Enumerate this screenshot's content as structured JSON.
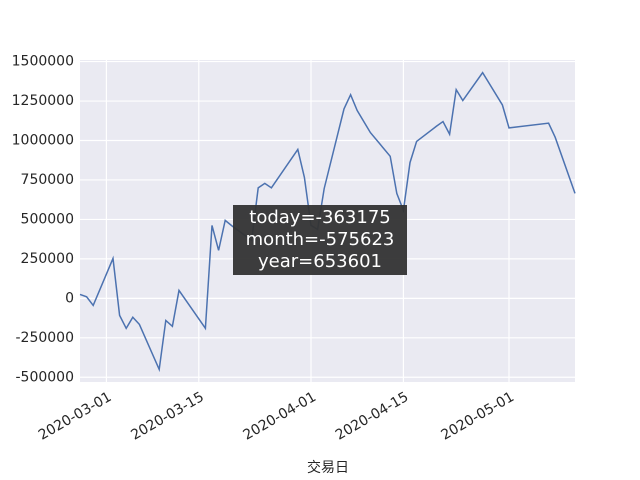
{
  "chart_data": {
    "type": "line",
    "xlabel": "交易日",
    "x": [
      "2020-02-26",
      "2020-02-27",
      "2020-02-28",
      "2020-03-02",
      "2020-03-03",
      "2020-03-04",
      "2020-03-05",
      "2020-03-06",
      "2020-03-09",
      "2020-03-10",
      "2020-03-11",
      "2020-03-12",
      "2020-03-16",
      "2020-03-17",
      "2020-03-18",
      "2020-03-19",
      "2020-03-20",
      "2020-03-23",
      "2020-03-24",
      "2020-03-25",
      "2020-03-26",
      "2020-03-30",
      "2020-03-31",
      "2020-04-01",
      "2020-04-02",
      "2020-04-03",
      "2020-04-06",
      "2020-04-07",
      "2020-04-08",
      "2020-04-10",
      "2020-04-13",
      "2020-04-14",
      "2020-04-15",
      "2020-04-16",
      "2020-04-17",
      "2020-04-20",
      "2020-04-21",
      "2020-04-22",
      "2020-04-23",
      "2020-04-24",
      "2020-04-27",
      "2020-04-30",
      "2020-05-01",
      "2020-05-07",
      "2020-05-08",
      "2020-05-11"
    ],
    "series": [
      {
        "color": "#4c72b0",
        "values": [
          25000,
          10000,
          -45000,
          253000,
          -108000,
          -190000,
          -120000,
          -165000,
          -450000,
          -140000,
          -177000,
          50000,
          -190000,
          462000,
          304000,
          494000,
          460000,
          367000,
          700000,
          728000,
          700000,
          943000,
          766000,
          462000,
          437000,
          696000,
          1200000,
          1290000,
          1190000,
          1050000,
          900000,
          665000,
          557000,
          860000,
          994000,
          1090000,
          1120000,
          1040000,
          1322000,
          1253000,
          1430000,
          1225000,
          1080000,
          1110000,
          1020000,
          665000
        ]
      }
    ],
    "xlim": [
      "2020-02-26",
      "2020-05-11"
    ],
    "xticks": [
      "2020-03-01",
      "2020-03-15",
      "2020-04-01",
      "2020-04-15",
      "2020-05-01"
    ],
    "ylim": [
      -530000,
      1510000
    ],
    "yticks": [
      -500000,
      -250000,
      0,
      250000,
      500000,
      750000,
      1000000,
      1250000,
      1500000
    ],
    "grid": true,
    "tooltip": [
      "today=-363175",
      "month=-575623",
      "year=653601"
    ]
  }
}
